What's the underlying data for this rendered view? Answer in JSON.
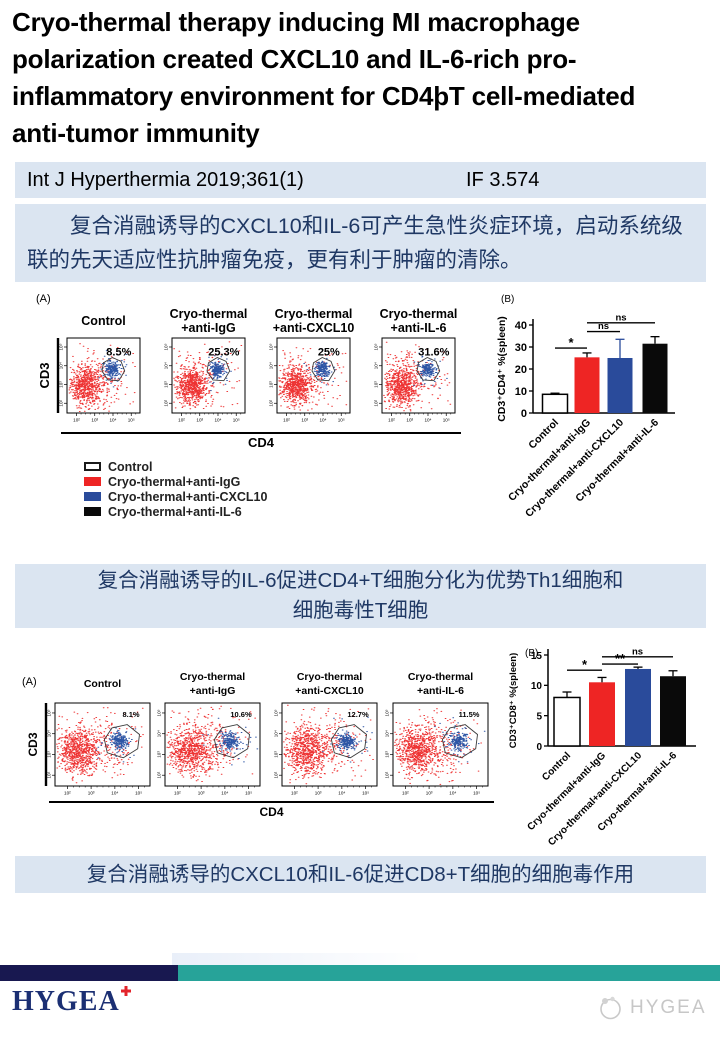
{
  "header": {
    "title": "Cryo-thermal therapy inducing MI macrophage\npolarization created CXCL10 and IL-6-rich pro-\ninflammatory environment for CD4þT cell-mediated\nanti-tumor immunity",
    "citation": "Int J Hyperthermia 2019;361(1)",
    "impact_factor": "IF 3.574"
  },
  "summaries": {
    "block1": "复合消融诱导的CXCL10和IL-6可产生急性炎症环境，启动系统级联的先天适应性抗肿瘤免疫，更有利于肿瘤的清除。",
    "block2": "复合消融诱导的IL-6促进CD4+T细胞分化为优势Th1细胞和\n细胞毒性T细胞",
    "block3": "复合消融诱导的CXCL10和IL-6促进CD8+T细胞的细胞毒作用"
  },
  "figure1": {
    "panel_label": "(A)",
    "x_axis": "CD4",
    "y_axis": "CD3",
    "log_ticks": [
      "10²",
      "10³",
      "10⁴",
      "10⁵"
    ],
    "plots": [
      {
        "title": "Control",
        "percent": "8.5%"
      },
      {
        "title": "Cryo-thermal\n+anti-IgG",
        "percent": "25.3%"
      },
      {
        "title": "Cryo-thermal\n+anti-CXCL10",
        "percent": "25%"
      },
      {
        "title": "Cryo-thermal\n+anti-IL-6",
        "percent": "31.6%"
      }
    ],
    "legend": [
      {
        "label": "Control",
        "color": "#ffffff"
      },
      {
        "label": "Cryo-thermal+anti-IgG",
        "color": "#ee2524"
      },
      {
        "label": "Cryo-thermal+anti-CXCL10",
        "color": "#2a4b9b"
      },
      {
        "label": "Cryo-thermal+anti-IL-6",
        "color": "#0a0a0a"
      }
    ]
  },
  "figure2": {
    "panel_label": "(A)",
    "x_axis": "CD4",
    "y_axis": "CD3",
    "log_ticks": [
      "10²",
      "10³",
      "10⁴",
      "10⁵"
    ],
    "plots": [
      {
        "title": "Control",
        "percent": "8.1%"
      },
      {
        "title": "Cryo-thermal\n+anti-IgG",
        "percent": "10.6%"
      },
      {
        "title": "Cryo-thermal\n+anti-CXCL10",
        "percent": "12.7%"
      },
      {
        "title": "Cryo-thermal\n+anti-IL-6",
        "percent": "11.5%"
      }
    ]
  },
  "chart_data": [
    {
      "type": "bar",
      "panel_label": "(B)",
      "title": "",
      "xlabel": "",
      "ylabel": "CD3⁺CD4⁺ %(spleen)",
      "categories": [
        "Control",
        "Cryo-thermal+anti-IgG",
        "Cryo-thermal+anti-CXCL10",
        "Cryo-thermal+anti-IL-6"
      ],
      "values": [
        8.5,
        25.3,
        25.0,
        31.5
      ],
      "errors": [
        0.5,
        2.0,
        8.5,
        3.2
      ],
      "bar_colors": [
        "#ffffff",
        "#ee2524",
        "#2a4b9b",
        "#0a0a0a"
      ],
      "error_colors": [
        "#000000",
        "#000000",
        "#2a4b9b",
        "#000000"
      ],
      "ylim": [
        0,
        40
      ],
      "yticks": [
        0,
        10,
        20,
        30,
        40
      ],
      "grid": false,
      "significance": [
        {
          "from": 0,
          "to": 1,
          "label": "*",
          "y": 29.5
        },
        {
          "from": 1,
          "to": 2,
          "label": "ns",
          "y": 37
        },
        {
          "from": 1,
          "to": 3,
          "label": "ns",
          "y": 41
        }
      ]
    },
    {
      "type": "bar",
      "panel_label": "(B)",
      "title": "",
      "xlabel": "",
      "ylabel": "CD3⁺CD8⁺ %(spleen)",
      "categories": [
        "Control",
        "Cryo-thermal+anti-IgG",
        "Cryo-thermal+anti-CXCL10",
        "Cryo-thermal+anti-IL-6"
      ],
      "values": [
        8.0,
        10.5,
        12.7,
        11.5
      ],
      "errors": [
        0.9,
        0.8,
        0.3,
        0.9
      ],
      "bar_colors": [
        "#ffffff",
        "#ee2524",
        "#2a4b9b",
        "#0a0a0a"
      ],
      "error_colors": [
        "#000000",
        "#000000",
        "#000000",
        "#000000"
      ],
      "ylim": [
        0,
        15
      ],
      "yticks": [
        0,
        5,
        10,
        15
      ],
      "grid": false,
      "significance": [
        {
          "from": 0,
          "to": 1,
          "label": "*",
          "y": 12.5
        },
        {
          "from": 1,
          "to": 2,
          "label": "**",
          "y": 13.5
        },
        {
          "from": 1,
          "to": 3,
          "label": "ns",
          "y": 14.7
        }
      ]
    }
  ],
  "footer": {
    "logo_text": "HYGEA",
    "watermark_text": "HYGEA",
    "navy": "#181850",
    "teal": "#27a399",
    "logo_navy": "#1b2f73",
    "logo_cross_red": "#e3242b",
    "watermark_gray": "#c7c7c7"
  },
  "colors": {
    "highlight_bg": "#dbe5f1",
    "summary_text": "#1f3864",
    "scatter_red": "#ee3333",
    "scatter_blue": "#2d55a5"
  }
}
